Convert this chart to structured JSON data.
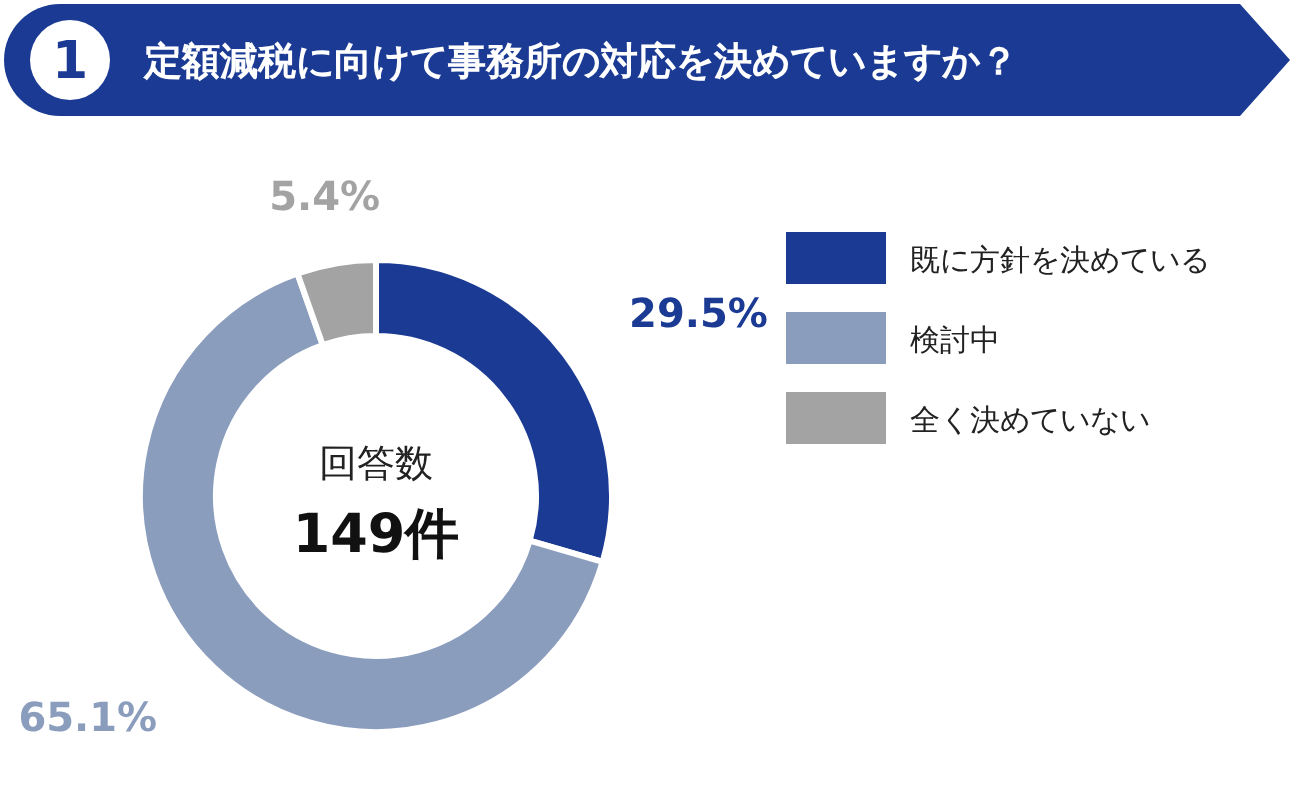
{
  "chart_data": {
    "type": "donut",
    "title": "定額減税に向けて事務所の対応を決めていますか？",
    "categories": [
      "既に方針を決めている",
      "検討中",
      "全く決めていない"
    ],
    "values": [
      29.5,
      65.1,
      5.4
    ],
    "colors": [
      "#1b3a93",
      "#8a9dbd",
      "#a3a3a3"
    ],
    "value_labels": [
      "29.5%",
      "65.1%",
      "5.4%"
    ],
    "annotations": [
      "1",
      "回答数",
      "149件"
    ],
    "legend": "top right"
  }
}
